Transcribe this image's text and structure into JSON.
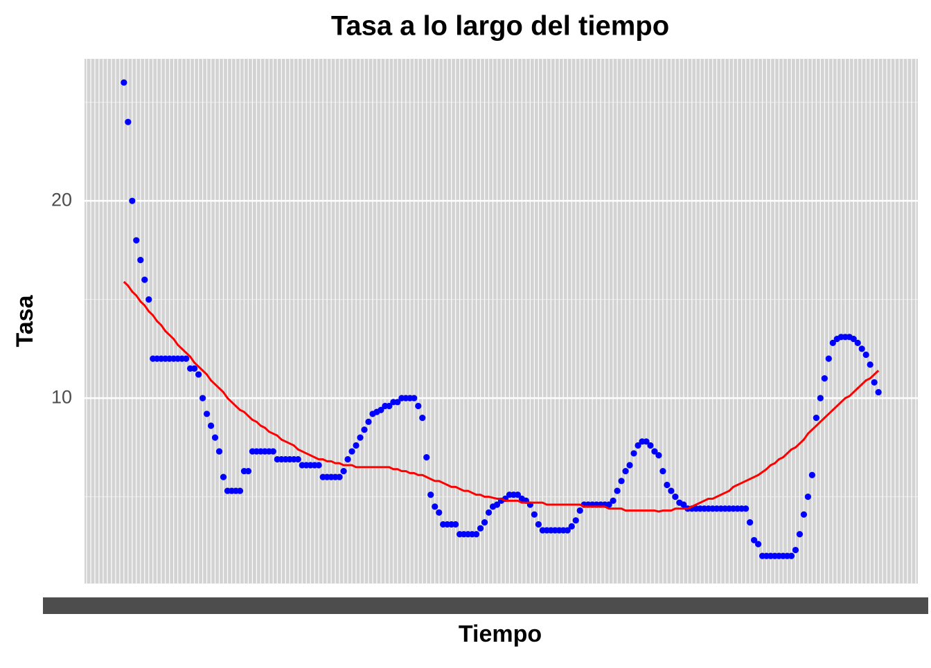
{
  "chart_data": {
    "type": "scatter",
    "title": "Tasa a lo largo del tiempo",
    "x_label": "Tiempo",
    "y_label": "Tasa",
    "categories": [
      null,
      null,
      null,
      null,
      null,
      null,
      null,
      null,
      null,
      null,
      null,
      null,
      null,
      null,
      null,
      null,
      null,
      null,
      null,
      null,
      null,
      null,
      null,
      null,
      null,
      null,
      null,
      null,
      null,
      null,
      null,
      null,
      null,
      null,
      null,
      null,
      null,
      null,
      null,
      null,
      null,
      null,
      null,
      null,
      null,
      null,
      null,
      null,
      null,
      null,
      null,
      null,
      null,
      null,
      null,
      null,
      null,
      null,
      null,
      null,
      null,
      null,
      null,
      null,
      null,
      null,
      null,
      null,
      null,
      null,
      null,
      null,
      null,
      null,
      null,
      null,
      null,
      null,
      null,
      null,
      null,
      null,
      null,
      null,
      null,
      null,
      null,
      null,
      null,
      null,
      null,
      null,
      null,
      null,
      null,
      null,
      null,
      null,
      null,
      null,
      null,
      null,
      null,
      null,
      null,
      null,
      null,
      null,
      null,
      null,
      null,
      null,
      null,
      null,
      null,
      null,
      null,
      null,
      null,
      null,
      null,
      null,
      null,
      null,
      null,
      null,
      null,
      null,
      null,
      null,
      null,
      null,
      null,
      null,
      null,
      null,
      null,
      null,
      null,
      null,
      null,
      null,
      null,
      null,
      null,
      null,
      null,
      null,
      null,
      null,
      null,
      null,
      null,
      null,
      null,
      null,
      null,
      null,
      null,
      null,
      null,
      null,
      null,
      null,
      null,
      null,
      null,
      null,
      null,
      null,
      null,
      null,
      null,
      null,
      null,
      null,
      null,
      null,
      null,
      null,
      null,
      null,
      null,
      null,
      null,
      null,
      null,
      null,
      null,
      null,
      null,
      null,
      null,
      null,
      null,
      null,
      null,
      null,
      null,
      null,
      null
    ],
    "series": [
      {
        "type": "points",
        "color": "#0000ff",
        "values": [
          null,
          null,
          null,
          null,
          null,
          null,
          null,
          null,
          null,
          26,
          24,
          20,
          18,
          17,
          16,
          15,
          12,
          12,
          12,
          12,
          12,
          12,
          12,
          12,
          12,
          11.5,
          11.5,
          11.2,
          10,
          9.2,
          8.6,
          8,
          7.3,
          6,
          5.3,
          5.3,
          5.3,
          5.3,
          6.3,
          6.3,
          7.3,
          7.3,
          7.3,
          7.3,
          7.3,
          7.3,
          6.9,
          6.9,
          6.9,
          6.9,
          6.9,
          6.9,
          6.6,
          6.6,
          6.6,
          6.6,
          6.6,
          6,
          6,
          6,
          6,
          6,
          6.3,
          6.9,
          7.3,
          7.6,
          8,
          8.4,
          8.8,
          9.2,
          9.3,
          9.4,
          9.6,
          9.6,
          9.8,
          9.8,
          10,
          10,
          10,
          10,
          9.6,
          9,
          7,
          5.1,
          4.5,
          4.2,
          3.6,
          3.6,
          3.6,
          3.6,
          3.1,
          3.1,
          3.1,
          3.1,
          3.1,
          3.4,
          3.7,
          4.2,
          4.5,
          4.6,
          4.8,
          4.9,
          5.1,
          5.1,
          5.1,
          4.9,
          4.8,
          4.6,
          4.1,
          3.6,
          3.3,
          3.3,
          3.3,
          3.3,
          3.3,
          3.3,
          3.3,
          3.5,
          3.8,
          4.3,
          4.6,
          4.6,
          4.6,
          4.6,
          4.6,
          4.6,
          4.6,
          4.8,
          5.3,
          5.8,
          6.3,
          6.6,
          7.2,
          7.6,
          7.8,
          7.8,
          7.6,
          7.3,
          7.1,
          6.3,
          5.6,
          5.3,
          5,
          4.7,
          4.6,
          4.4,
          4.4,
          4.4,
          4.4,
          4.4,
          4.4,
          4.4,
          4.4,
          4.4,
          4.4,
          4.4,
          4.4,
          4.4,
          4.4,
          4.4,
          3.7,
          2.8,
          2.6,
          2,
          2,
          2,
          2,
          2,
          2,
          2,
          2,
          2.3,
          3.1,
          4.1,
          5,
          6.1,
          9,
          10,
          11,
          12,
          12.8,
          13,
          13.1,
          13.1,
          13.1,
          13,
          12.8,
          12.5,
          12.2,
          11.7,
          10.8,
          10.3,
          null,
          null,
          null,
          null,
          null,
          null,
          null,
          null,
          null
        ]
      },
      {
        "type": "line",
        "color": "#ff0000",
        "values": [
          null,
          null,
          null,
          null,
          null,
          null,
          null,
          null,
          null,
          15.9,
          15.7,
          15.4,
          15.2,
          14.9,
          14.7,
          14.4,
          14.2,
          13.9,
          13.7,
          13.4,
          13.2,
          13.0,
          12.7,
          12.5,
          12.3,
          12.1,
          11.8,
          11.6,
          11.4,
          11.2,
          10.9,
          10.7,
          10.5,
          10.3,
          10.0,
          9.8,
          9.6,
          9.4,
          9.3,
          9.1,
          8.9,
          8.8,
          8.6,
          8.5,
          8.3,
          8.2,
          8.1,
          7.9,
          7.8,
          7.7,
          7.6,
          7.4,
          7.3,
          7.2,
          7.1,
          7.0,
          6.9,
          6.9,
          6.8,
          6.8,
          6.7,
          6.7,
          6.6,
          6.6,
          6.6,
          6.5,
          6.5,
          6.5,
          6.5,
          6.5,
          6.5,
          6.5,
          6.5,
          6.5,
          6.4,
          6.4,
          6.3,
          6.3,
          6.2,
          6.2,
          6.1,
          6.1,
          6.0,
          5.9,
          5.8,
          5.8,
          5.7,
          5.6,
          5.5,
          5.5,
          5.4,
          5.3,
          5.3,
          5.2,
          5.1,
          5.1,
          5.0,
          5.0,
          4.95,
          4.9,
          4.9,
          4.8,
          4.8,
          4.8,
          4.8,
          4.7,
          4.7,
          4.7,
          4.7,
          4.7,
          4.7,
          4.6,
          4.6,
          4.6,
          4.6,
          4.6,
          4.6,
          4.6,
          4.6,
          4.6,
          4.5,
          4.5,
          4.5,
          4.5,
          4.5,
          4.5,
          4.4,
          4.4,
          4.4,
          4.4,
          4.3,
          4.3,
          4.3,
          4.3,
          4.3,
          4.3,
          4.3,
          4.3,
          4.25,
          4.3,
          4.3,
          4.3,
          4.4,
          4.4,
          4.4,
          4.4,
          4.5,
          4.6,
          4.7,
          4.8,
          4.9,
          4.9,
          5.0,
          5.1,
          5.2,
          5.3,
          5.5,
          5.6,
          5.7,
          5.8,
          5.9,
          6.0,
          6.1,
          6.25,
          6.4,
          6.6,
          6.7,
          6.9,
          7.0,
          7.2,
          7.4,
          7.5,
          7.7,
          7.9,
          8.2,
          8.4,
          8.6,
          8.8,
          9.0,
          9.2,
          9.4,
          9.6,
          9.8,
          10.0,
          10.1,
          10.3,
          10.5,
          10.7,
          10.9,
          11.0,
          11.2,
          11.4,
          null,
          null,
          null,
          null,
          null,
          null,
          null,
          null,
          null
        ]
      }
    ],
    "ylim": [
      0.6,
      27.2
    ],
    "yticks": [
      10,
      20
    ],
    "y_minor_ticks": [
      5,
      15,
      25
    ],
    "grid": true
  }
}
